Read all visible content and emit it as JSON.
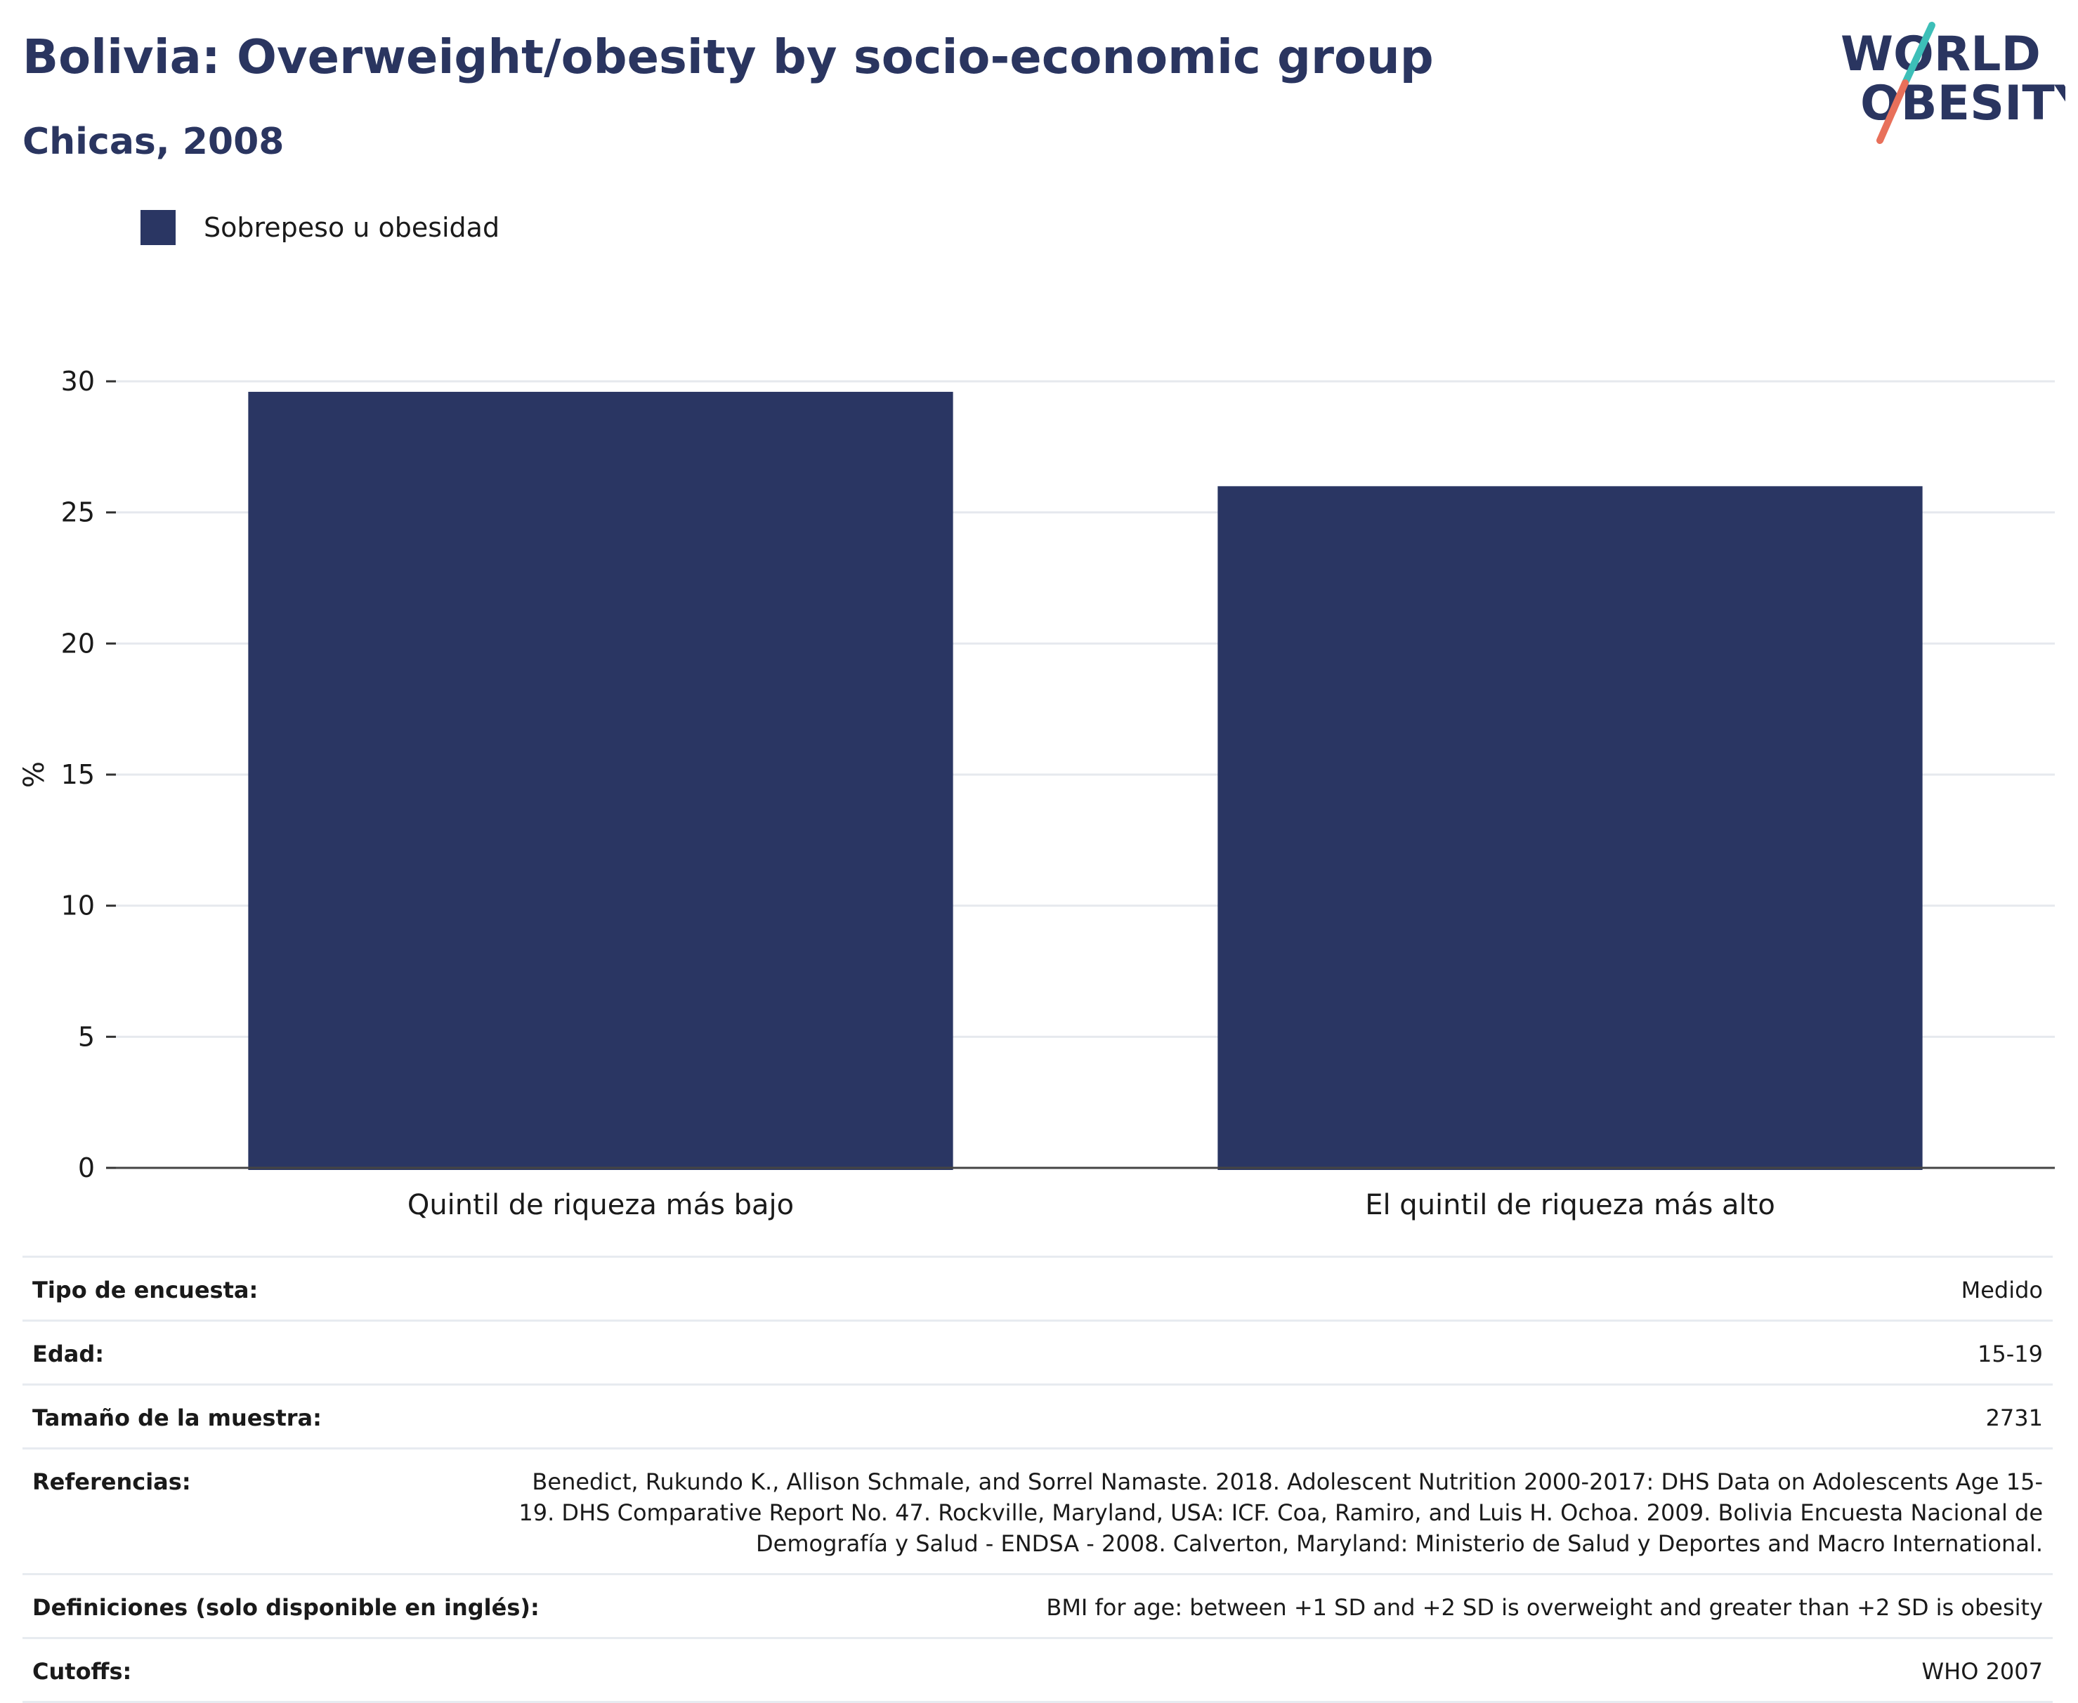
{
  "header": {
    "title": "Bolivia: Overweight/obesity by socio-economic group",
    "subtitle": "Chicas, 2008"
  },
  "logo": {
    "line1": "WORLD",
    "line2": "OBESITY",
    "colors": {
      "text": "#2a3560",
      "slash_top": "#3dbfb8",
      "slash_bottom": "#e8705a"
    }
  },
  "legend": {
    "label": "Sobrepeso u obesidad",
    "color": "#2a3663"
  },
  "chart_data": {
    "type": "bar",
    "categories": [
      "Quintil de riqueza más bajo",
      "El quintil de riqueza más alto"
    ],
    "series": [
      {
        "name": "Sobrepeso u obesidad",
        "values": [
          29.6,
          26.0
        ],
        "color": "#2a3663"
      }
    ],
    "ylabel": "%",
    "ylim": [
      0,
      30
    ],
    "yticks": [
      0,
      5,
      10,
      15,
      20,
      25,
      30
    ],
    "grid": true,
    "legend_position": "top-left"
  },
  "meta": {
    "rows": [
      {
        "label": "Tipo de encuesta:",
        "value": "Medido"
      },
      {
        "label": "Edad:",
        "value": "15-19"
      },
      {
        "label": "Tamaño de la muestra:",
        "value": "2731"
      },
      {
        "label": "Referencias:",
        "value": "Benedict, Rukundo K., Allison Schmale, and Sorrel Namaste. 2018. Adolescent Nutrition 2000-2017: DHS Data on Adolescents Age 15-19. DHS Comparative Report No. 47. Rockville, Maryland, USA: ICF. Coa, Ramiro, and Luis H. Ochoa. 2009. Bolivia Encuesta Nacional de Demografía y Salud - ENDSA - 2008. Calverton, Maryland: Ministerio de Salud y Deportes and Macro International."
      },
      {
        "label": "Definiciones (solo disponible en inglés):",
        "value": "BMI for age: between +1 SD and +2 SD is overweight and greater than +2 SD is obesity"
      },
      {
        "label": "Cutoffs:",
        "value": "WHO 2007"
      }
    ]
  }
}
